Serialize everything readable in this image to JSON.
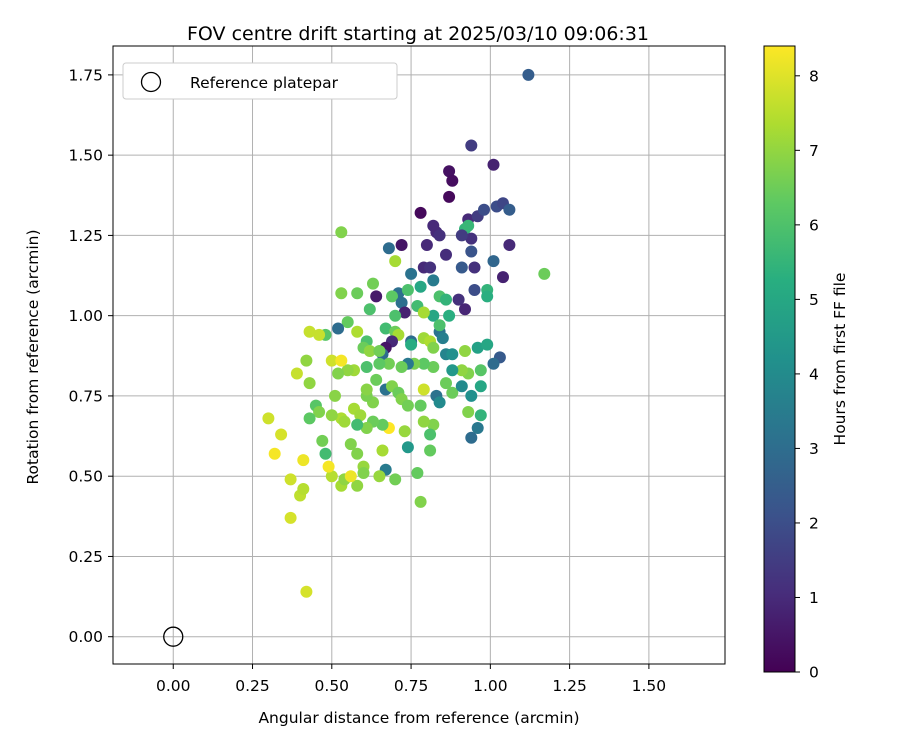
{
  "chart_data": {
    "type": "scatter",
    "title": "FOV centre drift starting at 2025/03/10 09:06:31",
    "xlabel": "Angular distance from reference (arcmin)",
    "ylabel": "Rotation from reference (arcmin)",
    "xlim": [
      -0.19,
      1.74
    ],
    "ylim": [
      -0.085,
      1.84
    ],
    "x_ticks": [
      "0.00",
      "0.25",
      "0.50",
      "0.75",
      "1.00",
      "1.25",
      "1.50"
    ],
    "y_ticks": [
      "0.00",
      "0.25",
      "0.50",
      "0.75",
      "1.00",
      "1.25",
      "1.50",
      "1.75"
    ],
    "grid": true,
    "legend": {
      "placement": "top-left",
      "entries": [
        "Reference platepar"
      ]
    },
    "reference_point": {
      "x": 0.0,
      "y": 0.0,
      "marker": "hollow-circle",
      "color": "#000000"
    },
    "colorbar": {
      "label": "Hours from first FF file",
      "colormap": "viridis",
      "range": [
        0,
        8.4
      ],
      "ticks": [
        "0",
        "1",
        "2",
        "3",
        "4",
        "5",
        "6",
        "7",
        "8"
      ]
    },
    "series": [
      {
        "points": [
          [
            1.12,
            1.75,
            2.5
          ],
          [
            0.94,
            1.53,
            1.5
          ],
          [
            1.01,
            1.47,
            0.8
          ],
          [
            0.87,
            1.45,
            0.4
          ],
          [
            0.88,
            1.42,
            0.3
          ],
          [
            0.87,
            1.37,
            0.2
          ],
          [
            0.78,
            1.32,
            0.2
          ],
          [
            0.93,
            1.3,
            1.0
          ],
          [
            0.96,
            1.31,
            1.5
          ],
          [
            0.98,
            1.33,
            2.0
          ],
          [
            1.02,
            1.34,
            2.0
          ],
          [
            1.04,
            1.35,
            1.8
          ],
          [
            1.06,
            1.33,
            2.5
          ],
          [
            0.92,
            1.27,
            5.5
          ],
          [
            0.93,
            1.28,
            5.6
          ],
          [
            0.94,
            1.24,
            1.2
          ],
          [
            0.91,
            1.25,
            1.5
          ],
          [
            0.82,
            1.28,
            1.0
          ],
          [
            0.83,
            1.26,
            1.0
          ],
          [
            0.84,
            1.25,
            1.2
          ],
          [
            0.72,
            1.22,
            0.5
          ],
          [
            0.8,
            1.22,
            1.0
          ],
          [
            0.68,
            1.21,
            3.0
          ],
          [
            0.53,
            1.26,
            6.8
          ],
          [
            0.7,
            1.17,
            7.3
          ],
          [
            0.86,
            1.19,
            1.1
          ],
          [
            0.94,
            1.2,
            2.2
          ],
          [
            0.91,
            1.15,
            2.4
          ],
          [
            0.95,
            1.15,
            1.2
          ],
          [
            1.01,
            1.17,
            2.8
          ],
          [
            0.79,
            1.15,
            1.0
          ],
          [
            0.81,
            1.15,
            1.2
          ],
          [
            0.75,
            1.13,
            3.2
          ],
          [
            0.82,
            1.11,
            3.5
          ],
          [
            0.78,
            1.09,
            5.0
          ],
          [
            0.71,
            1.07,
            3.1
          ],
          [
            0.74,
            1.08,
            6.0
          ],
          [
            0.69,
            1.06,
            6.3
          ],
          [
            0.64,
            1.06,
            0.6
          ],
          [
            0.58,
            1.07,
            6.5
          ],
          [
            0.53,
            1.07,
            6.8
          ],
          [
            0.63,
            1.1,
            6.6
          ],
          [
            0.72,
            1.04,
            3.1
          ],
          [
            0.77,
            1.03,
            5.8
          ],
          [
            0.84,
            1.06,
            6.0
          ],
          [
            0.86,
            1.05,
            5.5
          ],
          [
            0.9,
            1.05,
            1.2
          ],
          [
            0.95,
            1.08,
            2.0
          ],
          [
            0.99,
            1.08,
            5.5
          ],
          [
            1.04,
            1.12,
            0.8
          ],
          [
            1.06,
            1.22,
            1.0
          ],
          [
            1.17,
            1.13,
            6.5
          ],
          [
            0.99,
            1.06,
            5.3
          ],
          [
            0.92,
            1.02,
            0.9
          ],
          [
            0.87,
            1.0,
            5.3
          ],
          [
            0.82,
            1.0,
            5.0
          ],
          [
            0.79,
            1.01,
            7.3
          ],
          [
            0.73,
            1.01,
            0.8
          ],
          [
            0.7,
            1.0,
            6.0
          ],
          [
            0.62,
            1.02,
            6.0
          ],
          [
            0.55,
            0.98,
            6.4
          ],
          [
            0.52,
            0.96,
            3.0
          ],
          [
            0.48,
            0.94,
            6.2
          ],
          [
            0.46,
            0.94,
            7.7
          ],
          [
            0.43,
            0.95,
            7.7
          ],
          [
            0.58,
            0.95,
            7.4
          ],
          [
            0.67,
            0.96,
            5.8
          ],
          [
            0.7,
            0.95,
            6.5
          ],
          [
            0.71,
            0.94,
            7.3
          ],
          [
            0.69,
            0.92,
            1.0
          ],
          [
            0.67,
            0.9,
            0.5
          ],
          [
            0.66,
            0.88,
            3.0
          ],
          [
            0.61,
            0.92,
            6.0
          ],
          [
            0.6,
            0.9,
            6.5
          ],
          [
            0.62,
            0.89,
            7.0
          ],
          [
            0.65,
            0.89,
            6.6
          ],
          [
            0.75,
            0.92,
            3.0
          ],
          [
            0.79,
            0.93,
            7.2
          ],
          [
            0.81,
            0.92,
            7.4
          ],
          [
            0.82,
            0.9,
            6.8
          ],
          [
            0.84,
            0.95,
            3.2
          ],
          [
            0.85,
            0.93,
            3.6
          ],
          [
            0.86,
            0.88,
            3.8
          ],
          [
            0.88,
            0.88,
            4.2
          ],
          [
            0.92,
            0.89,
            7.0
          ],
          [
            0.96,
            0.9,
            4.8
          ],
          [
            0.99,
            0.91,
            5.0
          ],
          [
            1.03,
            0.87,
            2.4
          ],
          [
            1.01,
            0.85,
            3.0
          ],
          [
            0.97,
            0.83,
            6.2
          ],
          [
            0.93,
            0.82,
            6.8
          ],
          [
            0.91,
            0.83,
            7.0
          ],
          [
            0.88,
            0.83,
            4.5
          ],
          [
            0.82,
            0.84,
            6.5
          ],
          [
            0.79,
            0.85,
            6.3
          ],
          [
            0.76,
            0.85,
            6.7
          ],
          [
            0.74,
            0.85,
            3.4
          ],
          [
            0.72,
            0.84,
            6.5
          ],
          [
            0.68,
            0.85,
            6.6
          ],
          [
            0.65,
            0.85,
            6.3
          ],
          [
            0.61,
            0.84,
            6.0
          ],
          [
            0.57,
            0.83,
            7.2
          ],
          [
            0.55,
            0.83,
            7.0
          ],
          [
            0.52,
            0.82,
            6.8
          ],
          [
            0.5,
            0.86,
            7.8
          ],
          [
            0.53,
            0.86,
            8.3
          ],
          [
            0.42,
            0.86,
            7.0
          ],
          [
            0.39,
            0.82,
            7.7
          ],
          [
            0.43,
            0.79,
            7.0
          ],
          [
            0.45,
            0.72,
            6.2
          ],
          [
            0.46,
            0.7,
            6.8
          ],
          [
            0.43,
            0.68,
            6.3
          ],
          [
            0.51,
            0.75,
            6.9
          ],
          [
            0.53,
            0.68,
            7.4
          ],
          [
            0.57,
            0.71,
            7.3
          ],
          [
            0.59,
            0.69,
            7.2
          ],
          [
            0.63,
            0.73,
            6.8
          ],
          [
            0.61,
            0.75,
            6.7
          ],
          [
            0.67,
            0.77,
            3.2
          ],
          [
            0.69,
            0.78,
            6.8
          ],
          [
            0.71,
            0.76,
            6.5
          ],
          [
            0.72,
            0.74,
            6.8
          ],
          [
            0.74,
            0.72,
            6.6
          ],
          [
            0.78,
            0.72,
            6.4
          ],
          [
            0.79,
            0.77,
            7.8
          ],
          [
            0.83,
            0.75,
            3.2
          ],
          [
            0.84,
            0.73,
            4.0
          ],
          [
            0.86,
            0.79,
            6.5
          ],
          [
            0.88,
            0.76,
            6.5
          ],
          [
            0.91,
            0.78,
            4.0
          ],
          [
            0.94,
            0.75,
            4.2
          ],
          [
            0.97,
            0.78,
            5.0
          ],
          [
            0.93,
            0.7,
            6.8
          ],
          [
            0.97,
            0.69,
            5.5
          ],
          [
            0.96,
            0.65,
            3.4
          ],
          [
            0.94,
            0.62,
            3.0
          ],
          [
            0.82,
            0.66,
            6.8
          ],
          [
            0.81,
            0.63,
            6.0
          ],
          [
            0.79,
            0.67,
            7.0
          ],
          [
            0.73,
            0.64,
            7.1
          ],
          [
            0.68,
            0.65,
            8.4
          ],
          [
            0.66,
            0.66,
            6.4
          ],
          [
            0.63,
            0.67,
            6.5
          ],
          [
            0.61,
            0.65,
            6.8
          ],
          [
            0.58,
            0.66,
            5.8
          ],
          [
            0.54,
            0.67,
            7.2
          ],
          [
            0.5,
            0.69,
            7.0
          ],
          [
            0.47,
            0.61,
            6.6
          ],
          [
            0.48,
            0.57,
            5.8
          ],
          [
            0.56,
            0.6,
            6.8
          ],
          [
            0.58,
            0.57,
            6.8
          ],
          [
            0.6,
            0.53,
            7.1
          ],
          [
            0.66,
            0.58,
            7.3
          ],
          [
            0.67,
            0.52,
            3.5
          ],
          [
            0.74,
            0.59,
            4.5
          ],
          [
            0.81,
            0.58,
            6.4
          ],
          [
            0.77,
            0.51,
            6.4
          ],
          [
            0.7,
            0.49,
            6.6
          ],
          [
            0.65,
            0.5,
            7.1
          ],
          [
            0.6,
            0.51,
            6.8
          ],
          [
            0.58,
            0.47,
            7.0
          ],
          [
            0.54,
            0.49,
            7.2
          ],
          [
            0.53,
            0.47,
            7.3
          ],
          [
            0.5,
            0.5,
            7.5
          ],
          [
            0.49,
            0.53,
            8.3
          ],
          [
            0.41,
            0.55,
            8.2
          ],
          [
            0.37,
            0.49,
            7.8
          ],
          [
            0.4,
            0.44,
            7.6
          ],
          [
            0.41,
            0.46,
            7.5
          ],
          [
            0.37,
            0.37,
            7.9
          ],
          [
            0.32,
            0.57,
            8.3
          ],
          [
            0.3,
            0.68,
            7.8
          ],
          [
            0.34,
            0.63,
            7.9
          ],
          [
            0.42,
            0.14,
            7.9
          ],
          [
            0.78,
            0.42,
            6.8
          ],
          [
            0.54,
            0.49,
            7.0
          ],
          [
            0.56,
            0.5,
            8.2
          ],
          [
            0.61,
            0.77,
            6.9
          ],
          [
            0.64,
            0.8,
            6.5
          ],
          [
            0.75,
            0.91,
            5.2
          ],
          [
            0.84,
            0.97,
            6.0
          ]
        ]
      }
    ]
  }
}
